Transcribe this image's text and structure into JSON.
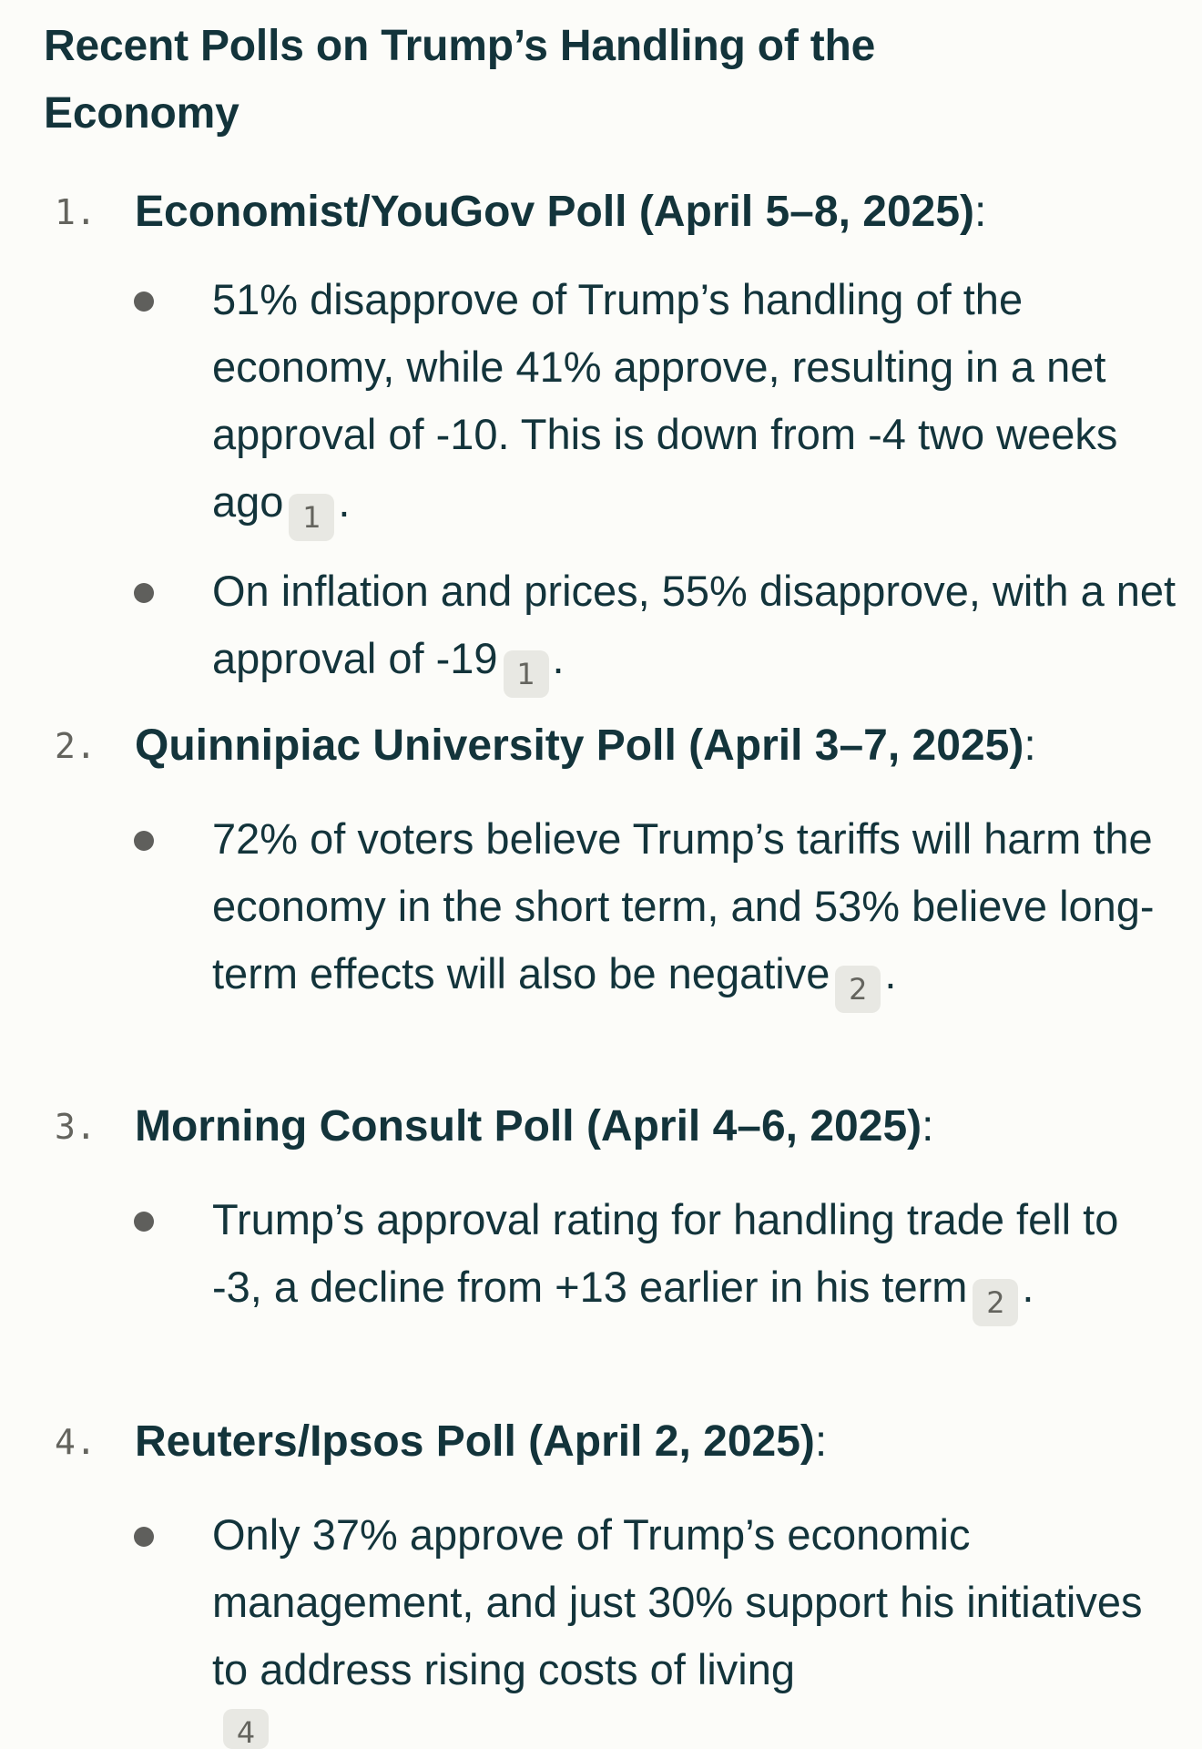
{
  "title": "Recent Polls on Trump’s Handling of the Economy",
  "polls": [
    {
      "number": "1.",
      "heading": "Economist/YouGov Poll (April 5–8, 2025)",
      "colon": ":",
      "bullets": [
        {
          "text": "51% disapprove of Trump’s handling of the economy, while 41% approve, resulting in a net approval of -10. This is down from -4 two weeks ago",
          "citation": "1",
          "tail": "."
        },
        {
          "text": "On inflation and prices, 55% disapprove, with a net approval of -19",
          "citation": "1",
          "tail": "."
        }
      ]
    },
    {
      "number": "2.",
      "heading": "Quinnipiac University Poll (April 3–7, 2025)",
      "colon": ":",
      "bullets": [
        {
          "text": "72% of voters believe Trump’s tariffs will harm the economy in the short term, and 53% believe long-term effects will also be negative",
          "citation": "2",
          "tail": "."
        }
      ]
    },
    {
      "number": "3.",
      "heading": "Morning Consult Poll (April 4–6, 2025)",
      "colon": ":",
      "bullets": [
        {
          "text": "Trump’s approval rating for handling trade fell to -3, a decline from +13 earlier in his term",
          "citation": "2",
          "tail": "."
        }
      ]
    },
    {
      "number": "4.",
      "heading": "Reuters/Ipsos Poll (April 2, 2025)",
      "colon": ":",
      "bullets": [
        {
          "text": "Only 37% approve of Trump’s economic management, and just 30% support his initiatives to address rising costs of living",
          "citation": "4",
          "tail": ""
        }
      ]
    }
  ],
  "colors": {
    "background": "#fcfcf9",
    "text": "#13343b",
    "muted": "#64645e",
    "citation_bg": "#e8e8e3",
    "bullet": "#5f5f5c"
  }
}
